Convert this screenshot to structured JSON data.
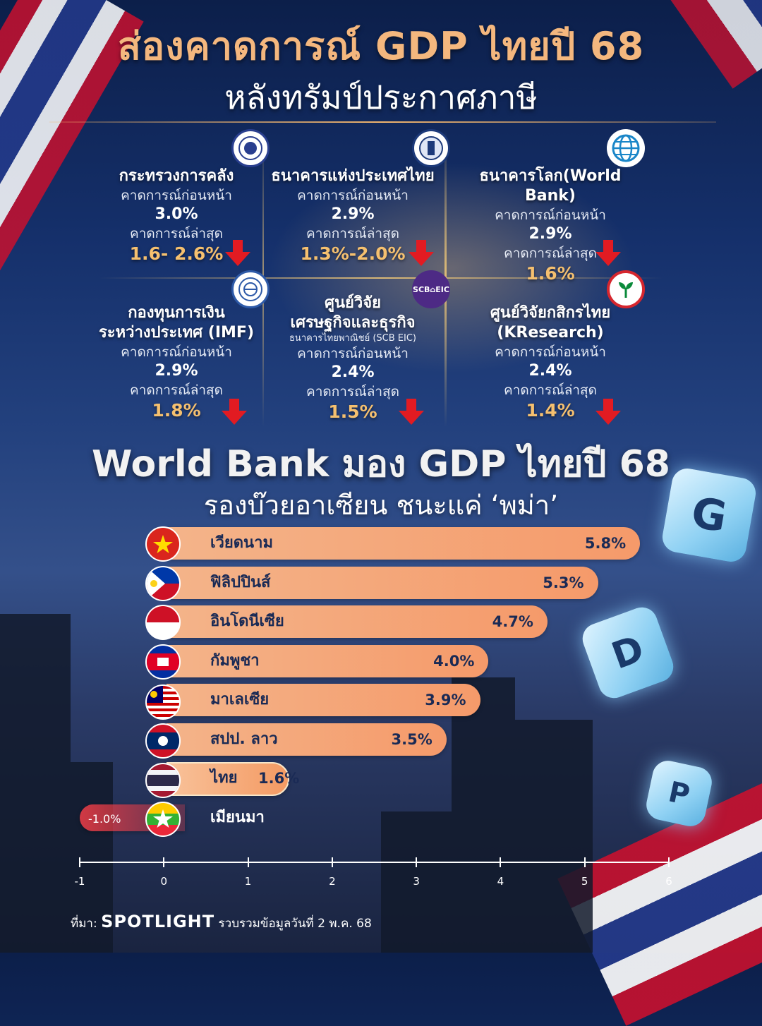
{
  "header": {
    "title_line1": "ส่องคาดการณ์ GDP ไทยปี 68",
    "title_line2": "หลังทรัมป์ประกาศภาษี"
  },
  "forecasts": [
    {
      "name": "กระทรวงการคลัง",
      "name2": "",
      "sub": "",
      "prev_label": "คาดการณ์ก่อนหน้า",
      "prev": "3.0%",
      "latest_label": "คาดการณ์ล่าสุด",
      "latest": "1.6- 2.6%",
      "logo": "ministry-of-finance-seal"
    },
    {
      "name": "ธนาคารแห่งประเทศไทย",
      "name2": "",
      "sub": "",
      "prev_label": "คาดการณ์ก่อนหน้า",
      "prev": "2.9%",
      "latest_label": "คาดการณ์ล่าสุด",
      "latest": "1.3%-2.0%",
      "logo": "bank-of-thailand-seal"
    },
    {
      "name": "ธนาคารโลก(World Bank)",
      "name2": "",
      "sub": "",
      "prev_label": "คาดการณ์ก่อนหน้า",
      "prev": "2.9%",
      "latest_label": "คาดการณ์ล่าสุด",
      "latest": "1.6%",
      "logo": "world-bank-globe"
    },
    {
      "name": "กองทุนการเงิน",
      "name2": "ระหว่างประเทศ (IMF)",
      "sub": "",
      "prev_label": "คาดการณ์ก่อนหน้า",
      "prev": "2.9%",
      "latest_label": "คาดการณ์ล่าสุด",
      "latest": "1.8%",
      "logo": "imf-seal"
    },
    {
      "name": "ศูนย์วิจัย",
      "name2": "เศรษฐกิจและธุรกิจ",
      "sub": "ธนาคารไทยพาณิชย์ (SCB EIC)",
      "prev_label": "คาดการณ์ก่อนหน้า",
      "prev": "2.4%",
      "latest_label": "คาดการณ์ล่าสุด",
      "latest": "1.5%",
      "logo": "scb-eic-logo",
      "logo_text": "SCB⌂EIC"
    },
    {
      "name": "ศูนย์วิจัยกสิกรไทย",
      "name2": "(KResearch)",
      "sub": "",
      "prev_label": "คาดการณ์ก่อนหน้า",
      "prev": "2.4%",
      "latest_label": "คาดการณ์ล่าสุด",
      "latest": "1.4%",
      "logo": "kbank-logo"
    }
  ],
  "section2": {
    "title": "World Bank มอง GDP ไทยปี 68",
    "subtitle": "รองบ๊วยอาเซียน ชนะแค่ ‘พม่า’"
  },
  "chart_data": {
    "type": "bar",
    "orientation": "horizontal",
    "categories": [
      "เวียดนาม",
      "ฟิลิปปินส์",
      "อินโดนีเซีย",
      "กัมพูชา",
      "มาเลเซีย",
      "สปป. ลาว",
      "ไทย",
      "เมียนมา"
    ],
    "values": [
      5.8,
      5.3,
      4.7,
      4.0,
      3.9,
      3.5,
      1.6,
      -1.0
    ],
    "value_labels": [
      "5.8%",
      "5.3%",
      "4.7%",
      "4.0%",
      "3.9%",
      "3.5%",
      "1.6%",
      "-1.0%"
    ],
    "xlim": [
      -1,
      6
    ],
    "xticks": [
      "-1",
      "0",
      "1",
      "2",
      "3",
      "4",
      "5",
      "6"
    ],
    "highlight": "ไทย",
    "bar_color": "#f5a477",
    "negative_color": "#e63c46"
  },
  "footer": {
    "source_label": "ที่มา:",
    "brand": "SPOTLIGHT",
    "note": "รวบรวมข้อมูลวันที่ 2 พ.ค. 68"
  },
  "decor": {
    "cube_letters": [
      "G",
      "D",
      "P"
    ]
  }
}
